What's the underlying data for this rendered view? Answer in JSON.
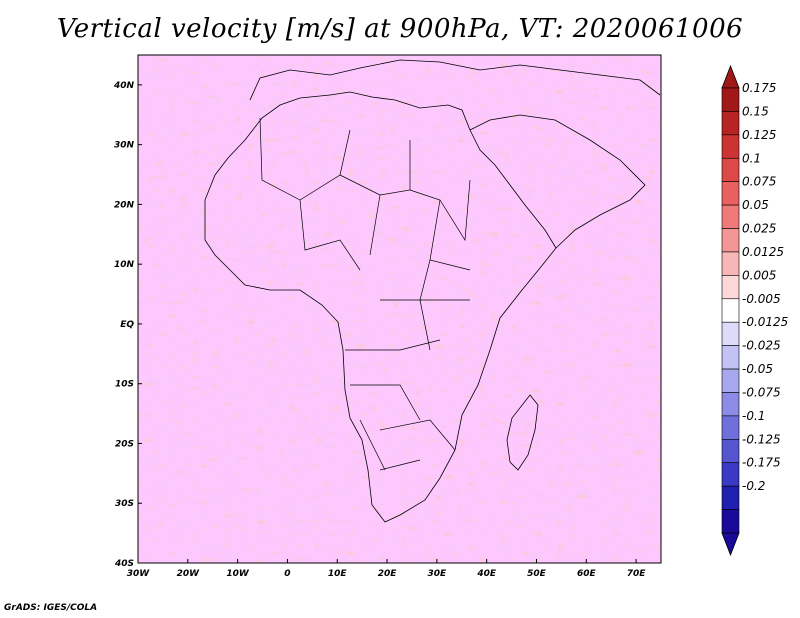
{
  "title": "Vertical velocity [m/s] at 900hPa, VT: 2020061006",
  "footer": "GrADS: IGES/COLA",
  "map": {
    "lon_min": -30,
    "lon_max": 75,
    "lat_min": -40,
    "lat_max": 45,
    "lon_ticks": [
      "30W",
      "20W",
      "10W",
      "0",
      "10E",
      "20E",
      "30E",
      "40E",
      "50E",
      "60E",
      "70E"
    ],
    "lat_ticks": [
      "40S",
      "30S",
      "20S",
      "10S",
      "EQ",
      "10N",
      "20N",
      "30N",
      "40N"
    ],
    "field": "vertical velocity"
  },
  "colorbar": {
    "labels": [
      "0.175",
      "0.15",
      "0.125",
      "0.1",
      "0.075",
      "0.05",
      "0.025",
      "0.0125",
      "0.005",
      "-0.005",
      "-0.0125",
      "-0.025",
      "-0.05",
      "-0.075",
      "-0.1",
      "-0.125",
      "-0.175",
      "-0.2"
    ],
    "colors": [
      "#a01818",
      "#b82424",
      "#cc3333",
      "#dd4848",
      "#e86060",
      "#f07a7a",
      "#f59696",
      "#f9b6b6",
      "#fcd8d8",
      "#ffffff",
      "#dcdcfa",
      "#c2c2f5",
      "#a8a8ee",
      "#8c8ce6",
      "#7070dc",
      "#5555d0",
      "#3a3ac4",
      "#2020b0",
      "#1a0a9a"
    ],
    "top_color": "#a01818",
    "bottom_color": "#1a0a9a"
  }
}
